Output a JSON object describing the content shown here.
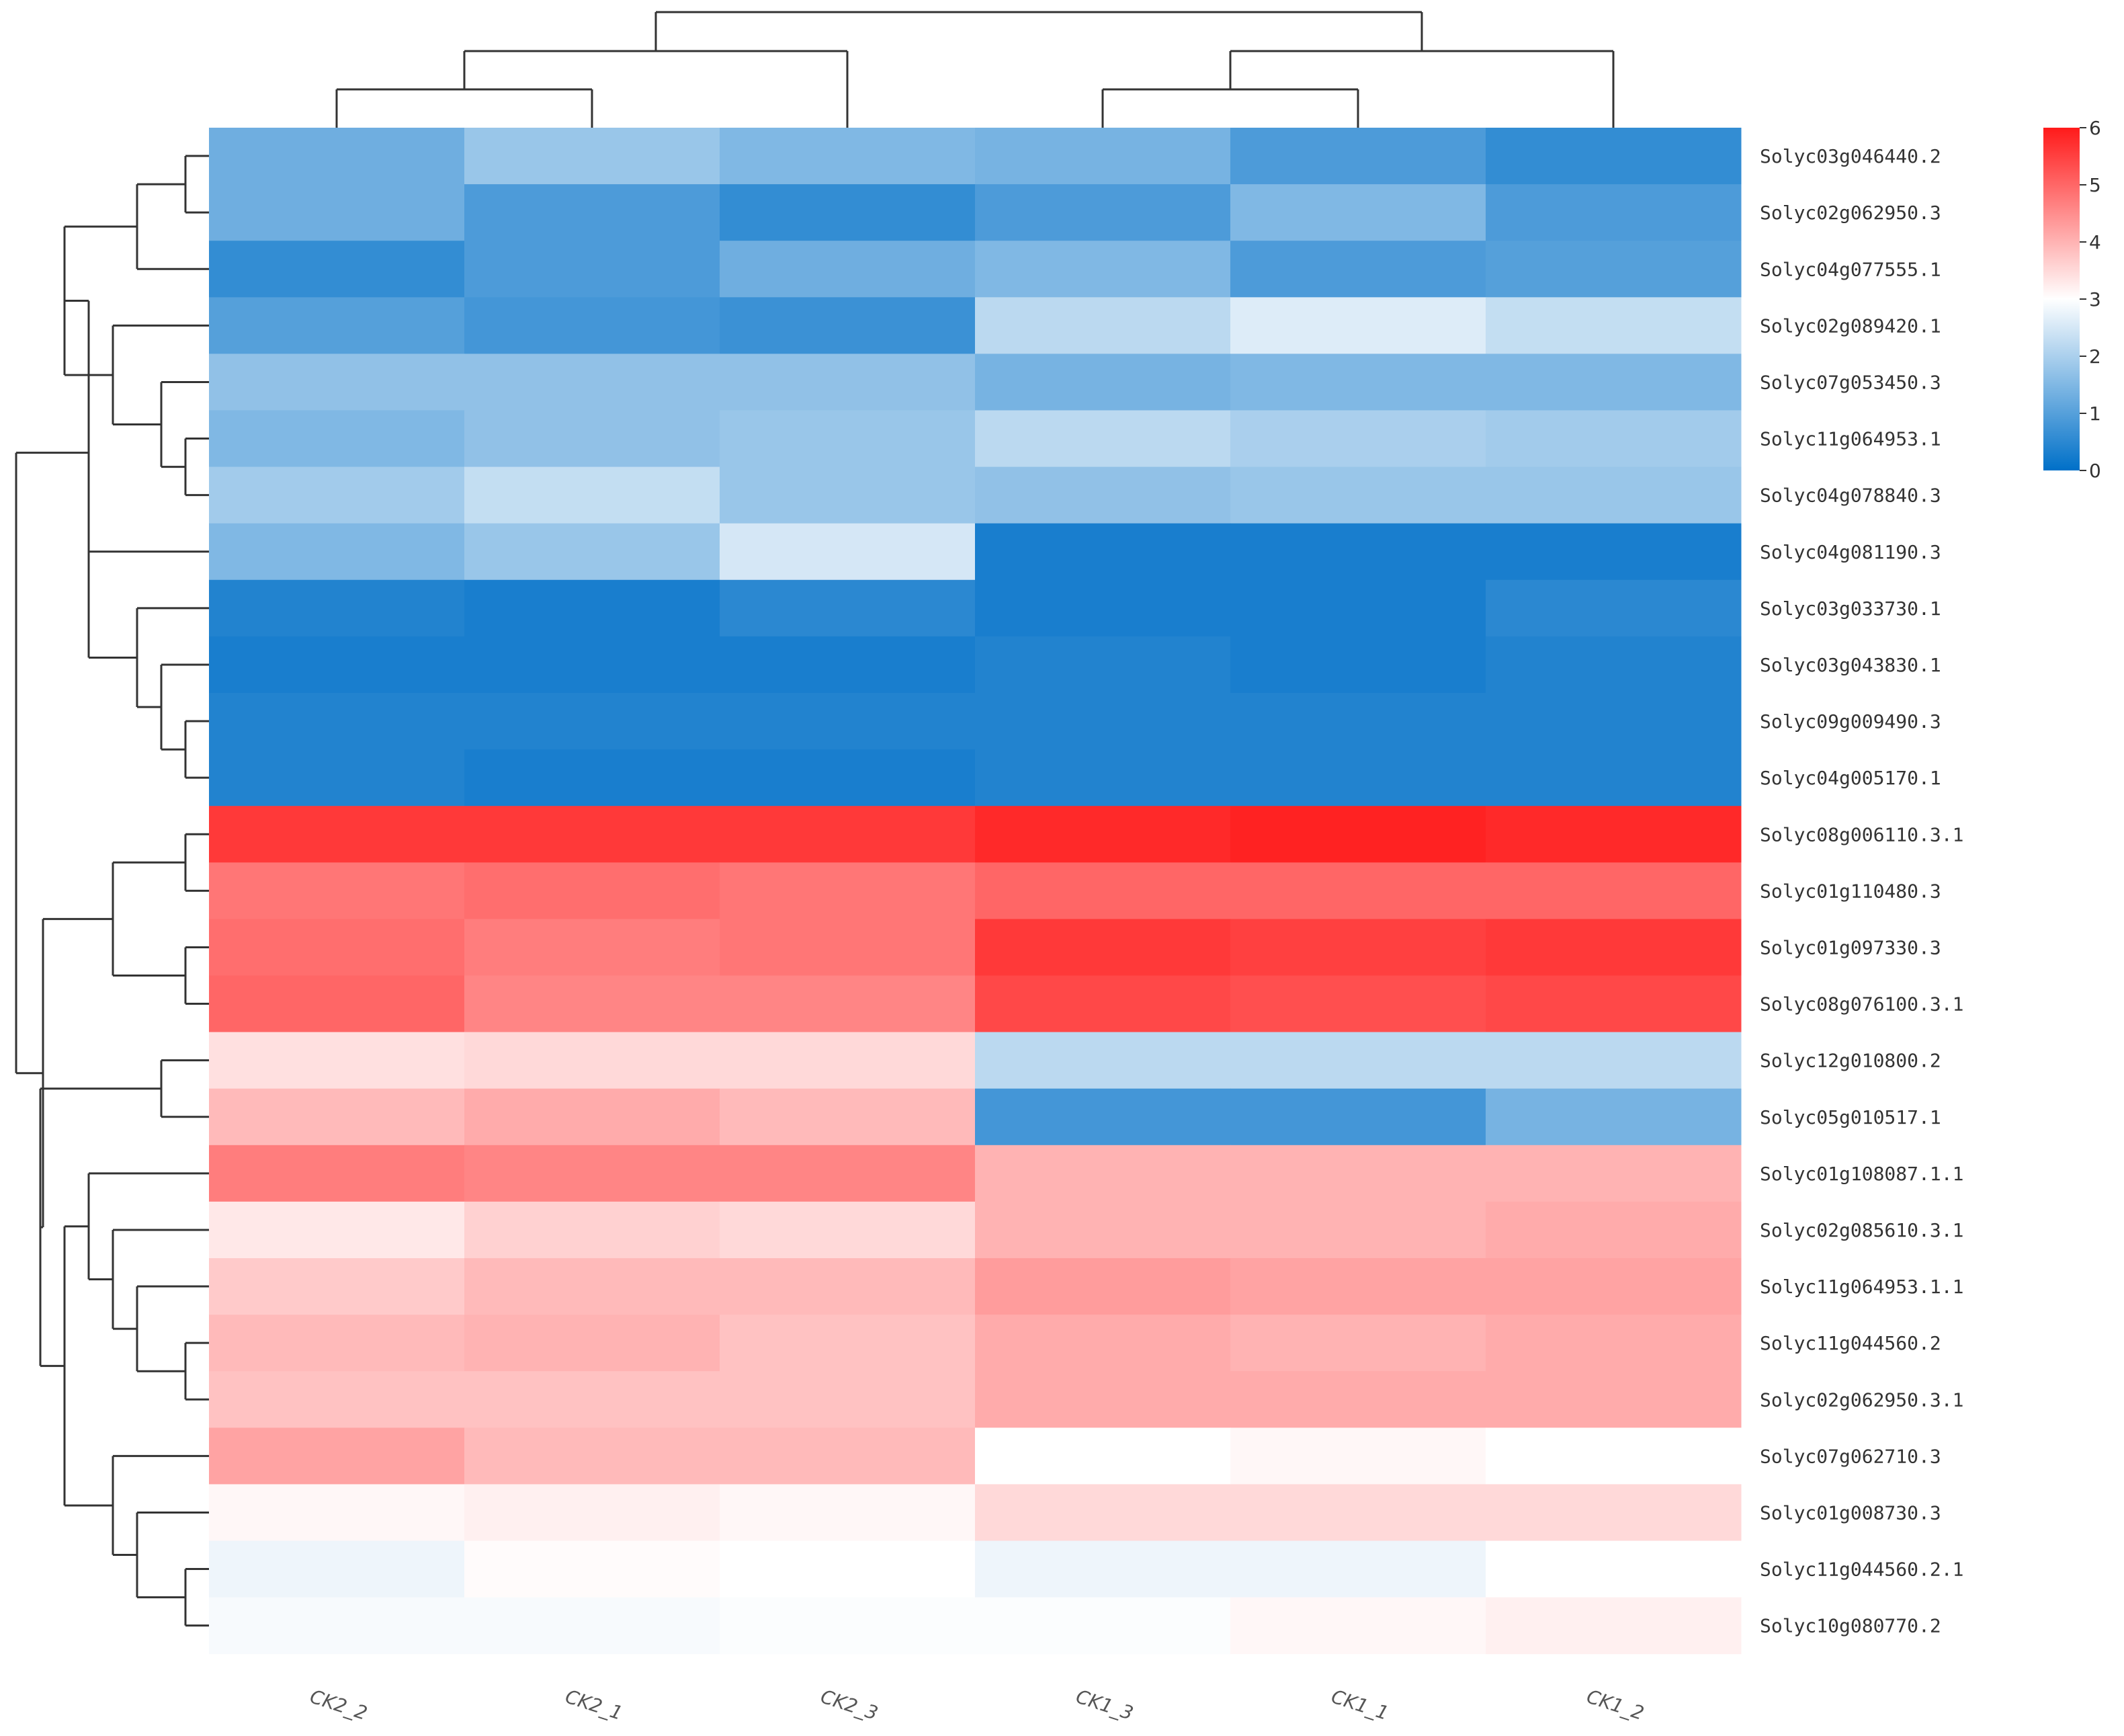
{
  "chart_data": {
    "type": "heatmap",
    "columns": [
      "CK2_2",
      "CK2_1",
      "CK2_3",
      "CK1_3",
      "CK1_1",
      "CK1_2"
    ],
    "rows": [
      {
        "gene": "Solyc03g046440.2",
        "values": [
          1.3,
          1.8,
          1.5,
          1.4,
          0.9,
          0.6
        ]
      },
      {
        "gene": "Solyc02g062950.3",
        "values": [
          1.3,
          0.9,
          0.6,
          0.9,
          1.5,
          0.9
        ]
      },
      {
        "gene": "Solyc04g077555.1",
        "values": [
          0.6,
          0.9,
          1.3,
          1.5,
          0.9,
          1.0
        ]
      },
      {
        "gene": "Solyc02g089420.1",
        "values": [
          1.0,
          0.8,
          0.7,
          2.2,
          2.6,
          2.3
        ]
      },
      {
        "gene": "Solyc07g053450.3",
        "values": [
          1.7,
          1.7,
          1.7,
          1.4,
          1.5,
          1.5
        ]
      },
      {
        "gene": "Solyc11g064953.1",
        "values": [
          1.5,
          1.7,
          1.8,
          2.2,
          2.0,
          1.9
        ]
      },
      {
        "gene": "Solyc04g078840.3",
        "values": [
          1.9,
          2.3,
          1.8,
          1.7,
          1.8,
          1.8
        ]
      },
      {
        "gene": "Solyc04g081190.3",
        "values": [
          1.5,
          1.8,
          2.5,
          0.3,
          0.3,
          0.3
        ]
      },
      {
        "gene": "Solyc03g033730.1",
        "values": [
          0.4,
          0.3,
          0.5,
          0.3,
          0.3,
          0.5
        ]
      },
      {
        "gene": "Solyc03g043830.1",
        "values": [
          0.3,
          0.3,
          0.3,
          0.4,
          0.3,
          0.4
        ]
      },
      {
        "gene": "Solyc09g009490.3",
        "values": [
          0.4,
          0.4,
          0.4,
          0.4,
          0.4,
          0.4
        ]
      },
      {
        "gene": "Solyc04g005170.1",
        "values": [
          0.4,
          0.3,
          0.3,
          0.4,
          0.4,
          0.4
        ]
      },
      {
        "gene": "Solyc08g006110.3.1",
        "values": [
          5.6,
          5.6,
          5.6,
          5.8,
          5.9,
          5.8
        ]
      },
      {
        "gene": "Solyc01g110480.3",
        "values": [
          4.8,
          4.9,
          4.8,
          5.0,
          5.0,
          5.0
        ]
      },
      {
        "gene": "Solyc01g097330.3",
        "values": [
          4.9,
          4.7,
          4.8,
          5.6,
          5.5,
          5.6
        ]
      },
      {
        "gene": "Solyc08g076100.3.1",
        "values": [
          5.0,
          4.6,
          4.6,
          5.4,
          5.3,
          5.4
        ]
      },
      {
        "gene": "Solyc12g010800.2",
        "values": [
          3.4,
          3.5,
          3.5,
          2.2,
          2.2,
          2.2
        ]
      },
      {
        "gene": "Solyc05g010517.1",
        "values": [
          3.9,
          4.1,
          3.9,
          0.8,
          0.8,
          1.4
        ]
      },
      {
        "gene": "Solyc01g108087.1.1",
        "values": [
          4.7,
          4.6,
          4.6,
          4.0,
          4.0,
          4.0
        ]
      },
      {
        "gene": "Solyc02g085610.3.1",
        "values": [
          3.3,
          3.6,
          3.5,
          4.0,
          4.0,
          4.1
        ]
      },
      {
        "gene": "Solyc11g064953.1.1",
        "values": [
          3.7,
          3.9,
          3.9,
          4.3,
          4.2,
          4.2
        ]
      },
      {
        "gene": "Solyc11g044560.2",
        "values": [
          3.9,
          4.0,
          3.8,
          4.1,
          4.0,
          4.1
        ]
      },
      {
        "gene": "Solyc02g062950.3.1",
        "values": [
          3.8,
          3.8,
          3.8,
          4.1,
          4.1,
          4.1
        ]
      },
      {
        "gene": "Solyc07g062710.3",
        "values": [
          4.2,
          3.9,
          3.9,
          3.0,
          3.1,
          3.0
        ]
      },
      {
        "gene": "Solyc01g008730.3",
        "values": [
          3.1,
          3.2,
          3.1,
          3.5,
          3.5,
          3.5
        ]
      },
      {
        "gene": "Solyc11g044560.2.1",
        "values": [
          2.8,
          3.05,
          3.0,
          2.8,
          2.8,
          3.0
        ]
      },
      {
        "gene": "Solyc10g080770.2",
        "values": [
          2.9,
          2.9,
          2.95,
          2.95,
          3.1,
          3.2
        ]
      }
    ],
    "colorbar": {
      "min": 0,
      "max": 6,
      "ticks": [
        "0",
        "1",
        "2",
        "3",
        "4",
        "5",
        "6"
      ]
    },
    "colors": {
      "low": "#0070c8",
      "mid": "#ffffff",
      "high": "#ff1a1a"
    }
  }
}
